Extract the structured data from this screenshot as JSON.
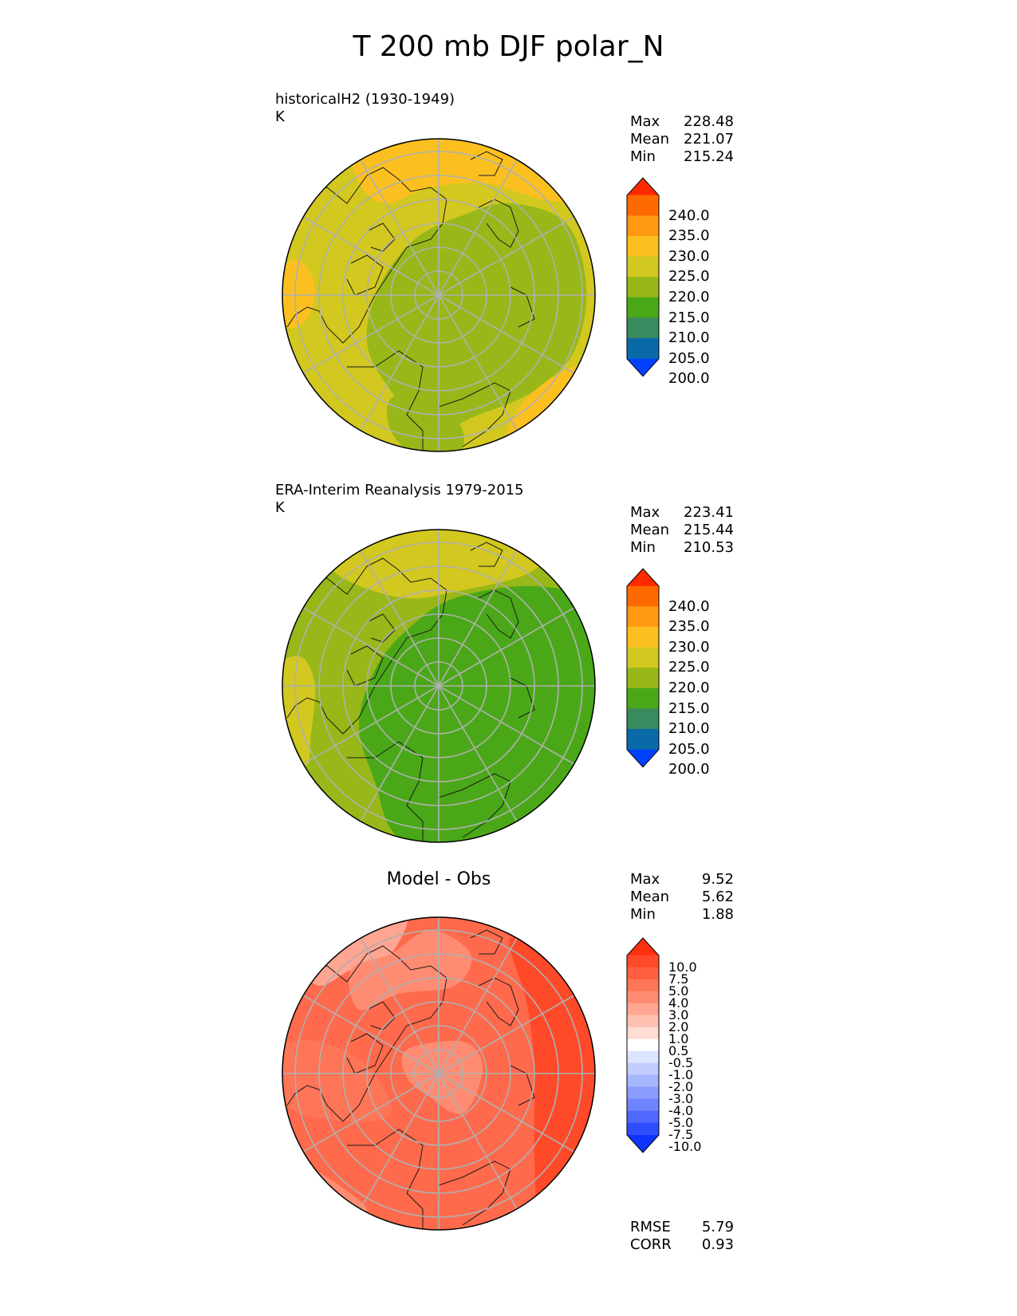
{
  "figure": {
    "title": "T 200 mb DJF polar_N"
  },
  "panels": [
    {
      "title_lines": [
        "historicalH2 (1930-1949)",
        "K"
      ],
      "stats": [
        {
          "label": "Max",
          "value": "228.48"
        },
        {
          "label": "Mean",
          "value": "221.07"
        },
        {
          "label": "Min",
          "value": "215.24"
        }
      ]
    },
    {
      "title_lines": [
        "ERA-Interim Reanalysis 1979-2015",
        "K"
      ],
      "stats": [
        {
          "label": "Max",
          "value": "223.41"
        },
        {
          "label": "Mean",
          "value": "215.44"
        },
        {
          "label": "Min",
          "value": "210.53"
        }
      ]
    },
    {
      "title": "Model - Obs",
      "stats": [
        {
          "label": "Max",
          "value": "9.52"
        },
        {
          "label": "Mean",
          "value": "5.62"
        },
        {
          "label": "Min",
          "value": "1.88"
        }
      ],
      "footer_stats": [
        {
          "label": "RMSE",
          "value": "5.79"
        },
        {
          "label": "CORR",
          "value": "0.93"
        }
      ]
    }
  ],
  "colorbars": {
    "temperature": {
      "labels": [
        "240.0",
        "235.0",
        "230.0",
        "225.0",
        "220.0",
        "215.0",
        "210.0",
        "205.0",
        "200.0"
      ],
      "colors_top_to_bottom": [
        "#ff2a00",
        "#ff6a00",
        "#ff9a10",
        "#fbc020",
        "#d2c820",
        "#97b818",
        "#4aa818",
        "#3a8a60",
        "#0a6aa8",
        "#0040ff"
      ]
    },
    "difference": {
      "labels": [
        "10.0",
        "7.5",
        "5.0",
        "4.0",
        "3.0",
        "2.0",
        "1.0",
        "0.5",
        "-0.5",
        "-1.0",
        "-2.0",
        "-3.0",
        "-4.0",
        "-5.0",
        "-7.5",
        "-10.0"
      ],
      "colors_top_to_bottom": [
        "#ff3010",
        "#ff4a2a",
        "#ff5f40",
        "#ff7558",
        "#ff8c72",
        "#ffa592",
        "#ffc0b2",
        "#ffdcd4",
        "#ffffff",
        "#dde4ff",
        "#c2cdff",
        "#a6b6ff",
        "#8a9dff",
        "#6e84ff",
        "#5068ff",
        "#304cff",
        "#1034ff"
      ]
    }
  },
  "chart_data": [
    {
      "type": "heatmap",
      "projection": "north polar stereographic",
      "title": "historicalH2 (1930-1949)",
      "units": "K",
      "value_summary": {
        "max": 228.48,
        "mean": 221.07,
        "min": 215.24
      },
      "levels": [
        200,
        205,
        210,
        215,
        220,
        225,
        230,
        235,
        240
      ],
      "colorbar_extend": "both",
      "grid": true
    },
    {
      "type": "heatmap",
      "projection": "north polar stereographic",
      "title": "ERA-Interim Reanalysis 1979-2015",
      "units": "K",
      "value_summary": {
        "max": 223.41,
        "mean": 215.44,
        "min": 210.53
      },
      "levels": [
        200,
        205,
        210,
        215,
        220,
        225,
        230,
        235,
        240
      ],
      "colorbar_extend": "both",
      "grid": true
    },
    {
      "type": "heatmap",
      "projection": "north polar stereographic",
      "title": "Model - Obs",
      "value_summary": {
        "max": 9.52,
        "mean": 5.62,
        "min": 1.88
      },
      "rmse": 5.79,
      "corr": 0.93,
      "levels": [
        -10.0,
        -7.5,
        -5.0,
        -4.0,
        -3.0,
        -2.0,
        -1.0,
        -0.5,
        0.5,
        1.0,
        2.0,
        3.0,
        4.0,
        5.0,
        7.5,
        10.0
      ],
      "colorbar_extend": "both",
      "grid": true
    }
  ]
}
